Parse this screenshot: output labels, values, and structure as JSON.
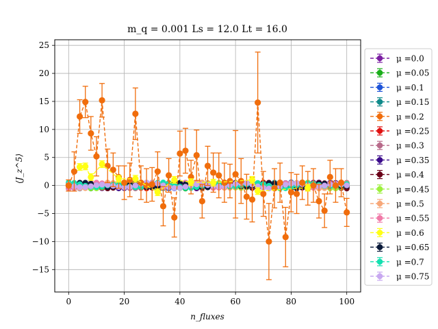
{
  "chart_data": {
    "type": "scatter",
    "title": "m_q = 0.001 Ls = 12.0 Lt = 16.0",
    "xlabel": "n_fluxes",
    "ylabel": "⟨J_z^5⟩",
    "xlim": [
      -5,
      105
    ],
    "ylim": [
      -19,
      26
    ],
    "x_ticks": [
      0,
      20,
      40,
      60,
      80,
      100
    ],
    "y_ticks": [
      -15,
      -10,
      -5,
      0,
      5,
      10,
      15,
      20,
      25
    ],
    "grid": true,
    "legend_position": "outside-right",
    "series": [
      {
        "name": "μ =0.0",
        "color": "#7b1fa2",
        "points": []
      },
      {
        "name": "μ =0.05",
        "color": "#1aae1a",
        "points": []
      },
      {
        "name": "μ =0.1",
        "color": "#1e54d8",
        "points": []
      },
      {
        "name": "μ =0.15",
        "color": "#0f8a8a",
        "points": []
      },
      {
        "name": "μ =0.2",
        "color": "#f06d0c",
        "points": [
          {
            "x": 0,
            "y": 0.0,
            "err": 1.0
          },
          {
            "x": 2,
            "y": 2.5,
            "err": 3.5
          },
          {
            "x": 4,
            "y": 12.3,
            "err": 3.0
          },
          {
            "x": 6,
            "y": 14.9,
            "err": 2.8
          },
          {
            "x": 8,
            "y": 9.3,
            "err": 3.0
          },
          {
            "x": 10,
            "y": 5.2,
            "err": 3.5
          },
          {
            "x": 12,
            "y": 15.2,
            "err": 3.0
          },
          {
            "x": 14,
            "y": 3.5,
            "err": 3.0
          },
          {
            "x": 16,
            "y": 2.8,
            "err": 3.0
          },
          {
            "x": 18,
            "y": 1.5,
            "err": 2.0
          },
          {
            "x": 20,
            "y": 0.5,
            "err": 3.0
          },
          {
            "x": 22,
            "y": 1.0,
            "err": 3.0
          },
          {
            "x": 24,
            "y": 12.8,
            "err": 4.6
          },
          {
            "x": 26,
            "y": 0.5,
            "err": 3.0
          },
          {
            "x": 28,
            "y": 0.0,
            "err": 3.0
          },
          {
            "x": 30,
            "y": 0.2,
            "err": 3.0
          },
          {
            "x": 32,
            "y": 2.5,
            "err": 3.5
          },
          {
            "x": 34,
            "y": -3.7,
            "err": 3.5
          },
          {
            "x": 36,
            "y": 1.8,
            "err": 3.0
          },
          {
            "x": 38,
            "y": -5.7,
            "err": 3.5
          },
          {
            "x": 40,
            "y": 5.7,
            "err": 4.0
          },
          {
            "x": 42,
            "y": 6.2,
            "err": 4.0
          },
          {
            "x": 44,
            "y": 1.5,
            "err": 3.0
          },
          {
            "x": 46,
            "y": 5.4,
            "err": 4.5
          },
          {
            "x": 48,
            "y": -2.8,
            "err": 3.0
          },
          {
            "x": 50,
            "y": 3.5,
            "err": 3.5
          },
          {
            "x": 52,
            "y": 2.3,
            "err": 3.5
          },
          {
            "x": 54,
            "y": 1.8,
            "err": 4.0
          },
          {
            "x": 56,
            "y": 0.5,
            "err": 3.5
          },
          {
            "x": 58,
            "y": 0.8,
            "err": 3.0
          },
          {
            "x": 60,
            "y": 2.0,
            "err": 7.8
          },
          {
            "x": 62,
            "y": 0.8,
            "err": 4.0
          },
          {
            "x": 64,
            "y": -2.0,
            "err": 4.0
          },
          {
            "x": 66,
            "y": -2.5,
            "err": 4.0
          },
          {
            "x": 68,
            "y": 14.8,
            "err": 9.0
          },
          {
            "x": 70,
            "y": -1.5,
            "err": 4.0
          },
          {
            "x": 72,
            "y": -10.0,
            "err": 6.8
          },
          {
            "x": 74,
            "y": -0.5,
            "err": 3.5
          },
          {
            "x": 76,
            "y": 0.5,
            "err": 3.5
          },
          {
            "x": 78,
            "y": -9.2,
            "err": 5.3
          },
          {
            "x": 80,
            "y": -1.2,
            "err": 3.5
          },
          {
            "x": 82,
            "y": -1.5,
            "err": 3.5
          },
          {
            "x": 84,
            "y": 0.5,
            "err": 3.0
          },
          {
            "x": 86,
            "y": -0.5,
            "err": 3.0
          },
          {
            "x": 88,
            "y": 0.0,
            "err": 3.0
          },
          {
            "x": 90,
            "y": -2.8,
            "err": 3.0
          },
          {
            "x": 92,
            "y": -4.5,
            "err": 3.0
          },
          {
            "x": 94,
            "y": 1.5,
            "err": 3.0
          },
          {
            "x": 96,
            "y": 0.0,
            "err": 3.0
          },
          {
            "x": 98,
            "y": 0.5,
            "err": 2.5
          },
          {
            "x": 100,
            "y": -4.8,
            "err": 2.5
          }
        ]
      },
      {
        "name": "μ =0.25",
        "color": "#e01010",
        "points": []
      },
      {
        "name": "μ =0.3",
        "color": "#b86a8a",
        "points": []
      },
      {
        "name": "μ =0.35",
        "color": "#3a0a8a",
        "points": []
      },
      {
        "name": "μ =0.4",
        "color": "#6a0018",
        "points": []
      },
      {
        "name": "μ =0.45",
        "color": "#9cf03c",
        "points": []
      },
      {
        "name": "μ =0.5",
        "color": "#f7a87a",
        "points": []
      },
      {
        "name": "μ =0.55",
        "color": "#f07aa8",
        "points": []
      },
      {
        "name": "μ =0.6",
        "color": "#ffff14",
        "points": [
          {
            "x": 4,
            "y": 3.3,
            "err": 0.6
          },
          {
            "x": 6,
            "y": 3.4,
            "err": 0.6
          },
          {
            "x": 8,
            "y": 1.5,
            "err": 0.6
          },
          {
            "x": 12,
            "y": 3.8,
            "err": 0.6
          },
          {
            "x": 18,
            "y": 1.2,
            "err": 0.6
          },
          {
            "x": 24,
            "y": 1.2,
            "err": 0.6
          },
          {
            "x": 32,
            "y": -1.2,
            "err": 0.6
          },
          {
            "x": 38,
            "y": 1.0,
            "err": 0.6
          },
          {
            "x": 44,
            "y": 0.6,
            "err": 0.6
          },
          {
            "x": 52,
            "y": 0.5,
            "err": 0.6
          },
          {
            "x": 66,
            "y": 1.0,
            "err": 0.6
          },
          {
            "x": 68,
            "y": -1.0,
            "err": 0.6
          },
          {
            "x": 86,
            "y": -0.4,
            "err": 0.6
          }
        ]
      },
      {
        "name": "μ =0.65",
        "color": "#0a1a3a",
        "points": []
      },
      {
        "name": "μ =0.7",
        "color": "#14e0b0",
        "points": []
      },
      {
        "name": "μ =0.75",
        "color": "#c8a8f0",
        "points": []
      }
    ]
  }
}
